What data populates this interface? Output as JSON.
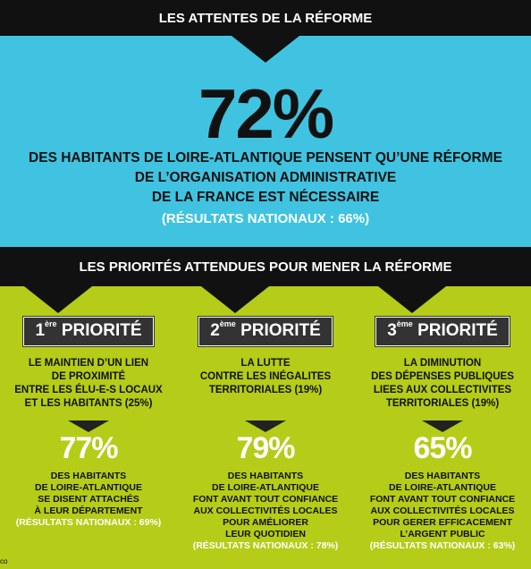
{
  "header": {
    "title": "LES ATTENTES DE LA RÉFORME"
  },
  "summary": {
    "percent": "72%",
    "line1": "DES HABITANTS DE LOIRE-ATLANTIQUE PENSENT QU’UNE RÉFORME",
    "line2": "DE L’ORGANISATION ADMINISTRATIVE",
    "line3": "DE LA FRANCE EST NÉCESSAIRE",
    "national": "(RÉSULTATS NATIONAUX : 66%)"
  },
  "priorities_header": {
    "title": "LES PRIORITÉS ATTENDUES POUR MENER LA RÉFORME"
  },
  "priorities": [
    {
      "rank": "1",
      "rank_sup": "ère",
      "label": "PRIORITÉ",
      "desc": [
        "LE MAINTIEN D’UN LIEN",
        "DE PROXIMITÉ",
        "ENTRE LES ÉLU-E-S LOCAUX",
        "ET LES HABITANTS (25%)"
      ],
      "percent": "77%",
      "detail": [
        "DES HABITANTS",
        "DE LOIRE-ATLANTIQUE",
        "SE DISENT ATTACHÉS",
        "À LEUR DÉPARTEMENT"
      ],
      "national": "(RÉSULTATS NATIONAUX : 69%)"
    },
    {
      "rank": "2",
      "rank_sup": "ème",
      "label": "PRIORITÉ",
      "desc": [
        "LA LUTTE",
        "CONTRE LES INÉGALITES",
        "TERRITORIALES (19%)"
      ],
      "percent": "79%",
      "detail": [
        "DES HABITANTS",
        "DE LOIRE-ATLANTIQUE",
        "FONT AVANT TOUT CONFIANCE",
        "AUX COLLECTIVITÉS LOCALES",
        "POUR AMÉLIORER",
        "LEUR QUOTIDIEN"
      ],
      "national": "(RÉSULTATS NATIONAUX : 78%)"
    },
    {
      "rank": "3",
      "rank_sup": "ème",
      "label": "PRIORITÉ",
      "desc": [
        "LA DIMINUTION",
        "DES DÉPENSES PUBLIQUES",
        "LIEES AUX COLLECTIVITES",
        "TERRITORIALES (19%)"
      ],
      "percent": "65%",
      "detail": [
        "DES HABITANTS",
        "DE LOIRE-ATLANTIQUE",
        "FONT AVANT TOUT CONFIANCE",
        "AUX COLLECTIVITÉS LOCALES",
        "POUR GERER EFFICACEMENT",
        "L’ARGENT PUBLIC"
      ],
      "national": "(RÉSULTATS NATIONAUX : 63%)"
    }
  ],
  "credit": "co",
  "colors": {
    "blue": "#3fc3e0",
    "green": "#b5cc18",
    "dark": "#111111"
  }
}
